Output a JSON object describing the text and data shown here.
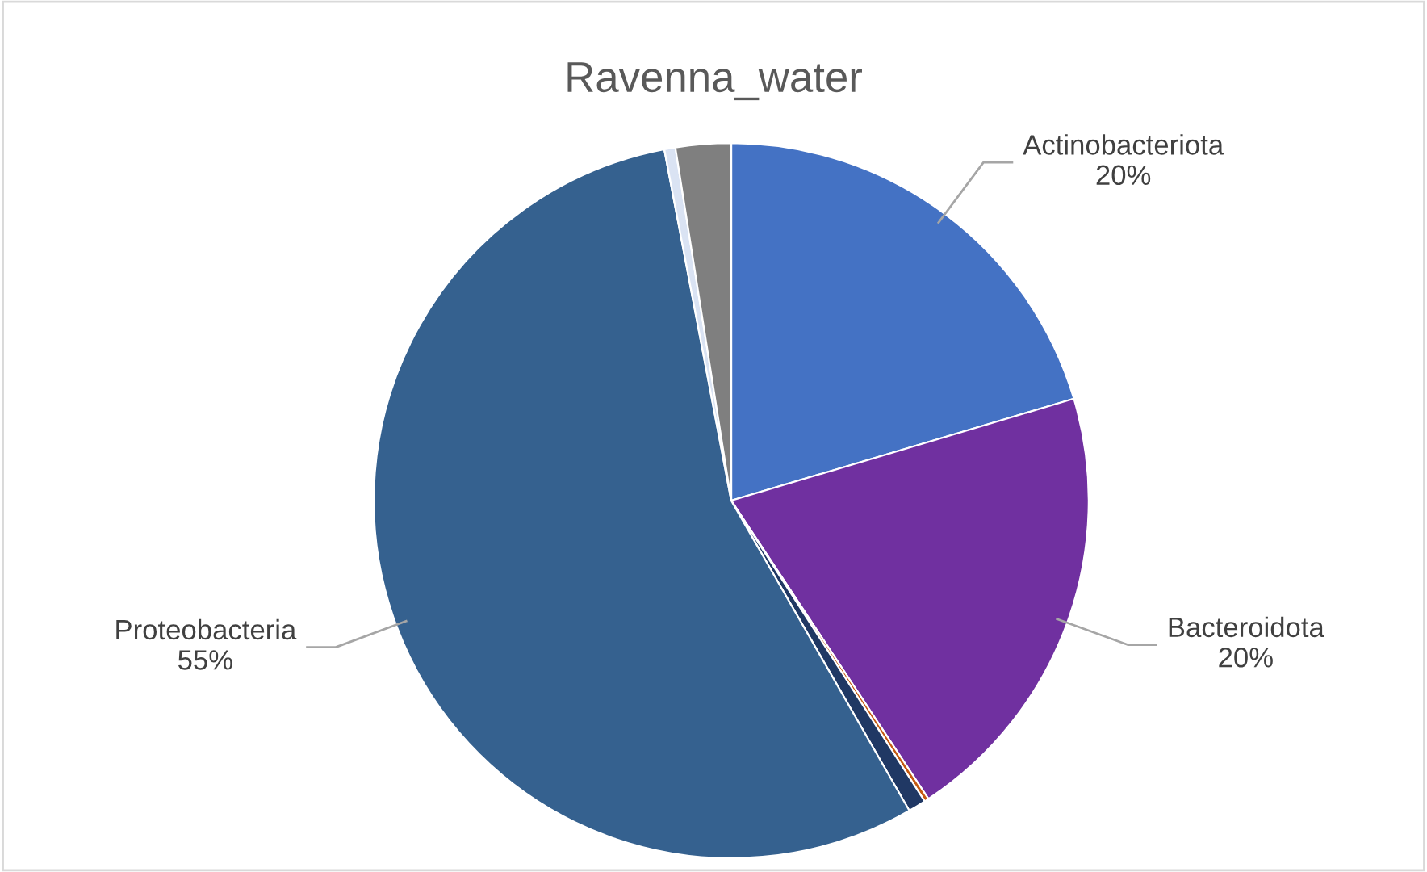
{
  "chart_data": {
    "type": "pie",
    "title": "Ravenna_water",
    "categories": [
      "Actinobacteriota",
      "Bacteroidota",
      null,
      null,
      "Proteobacteria",
      null,
      null
    ],
    "values": [
      20.4,
      20.3,
      0.2,
      0.8,
      55.3,
      0.5,
      2.5
    ],
    "value_labels": [
      "20%",
      "20%",
      null,
      null,
      "55%",
      null,
      null
    ],
    "colors": [
      "#4472c4",
      "#7030a0",
      "#c55a11",
      "#203864",
      "#35618f",
      "#dae3f3",
      "#7f7f7f"
    ],
    "legend": false
  }
}
